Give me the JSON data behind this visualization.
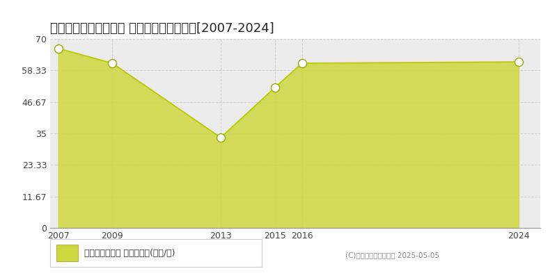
{
  "title": "堺市北区百舌鳥陵南町 マンション価格推移[2007-2024]",
  "years": [
    2007,
    2009,
    2013,
    2015,
    2016,
    2024
  ],
  "values": [
    66.5,
    61.0,
    33.5,
    52.0,
    61.0,
    61.5
  ],
  "line_color": "#b8c800",
  "fill_color": "#cdd840",
  "fill_alpha": 0.85,
  "marker_color": "#ffffff",
  "marker_edge_color": "#99aa00",
  "marker_size": 5,
  "ylim": [
    0,
    70
  ],
  "yticks": [
    0,
    11.67,
    23.33,
    35,
    46.67,
    58.33,
    70
  ],
  "ytick_labels": [
    "0",
    "11.67",
    "23.33",
    "35",
    "46.67",
    "58.33",
    "70"
  ],
  "xtick_labels": [
    "2007",
    "2009",
    "2013",
    "2015",
    "2016",
    "2024"
  ],
  "bg_color": "#f0f0f0",
  "plot_bg_color": "#ebebeb",
  "grid_color": "#cccccc",
  "legend_label": "マンション価格 平均坪単価(万円/坪)",
  "legend_marker_color": "#cdd840",
  "copyright_text": "(C)土地価格ドットコム 2025-05-05",
  "title_fontsize": 13,
  "tick_fontsize": 9,
  "legend_fontsize": 9,
  "xlim_left": 2006.7,
  "xlim_right": 2024.8
}
